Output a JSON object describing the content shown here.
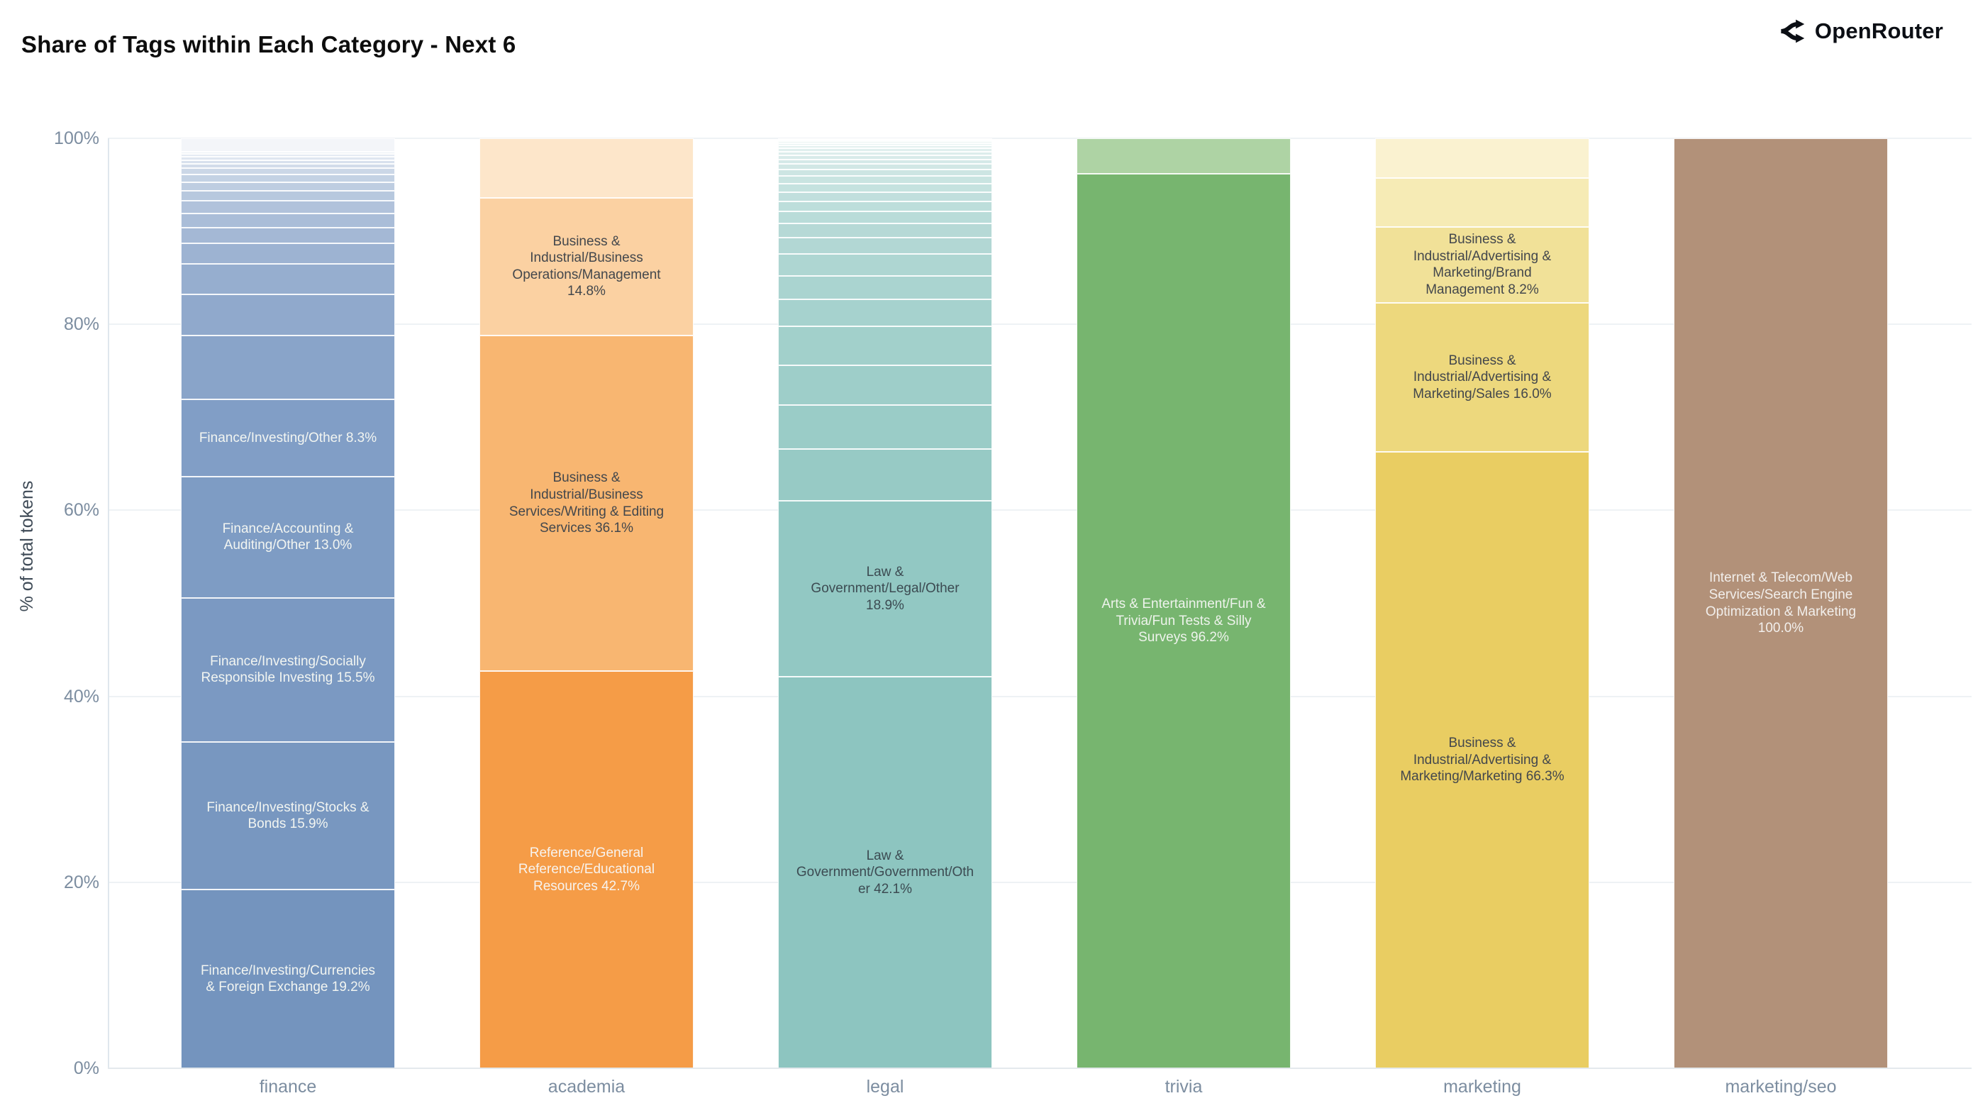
{
  "header": {
    "title": "Share of Tags within Each Category - Next 6",
    "logo_text": "OpenRouter"
  },
  "chart_data": {
    "type": "bar",
    "stacked": true,
    "orientation": "vertical",
    "title": "Share of Tags within Each Category - Next 6",
    "xlabel": "",
    "ylabel": "% of total tokens",
    "ylim": [
      0,
      100
    ],
    "yticks": [
      "0%",
      "20%",
      "40%",
      "60%",
      "80%",
      "100%"
    ],
    "grid": true,
    "legend": false,
    "categories": [
      "finance",
      "academia",
      "legal",
      "trivia",
      "marketing",
      "marketing/seo"
    ],
    "bars": [
      {
        "category": "finance",
        "segments": [
          {
            "label": "Finance/Investing/Currencies & Foreign Exchange 19.2%",
            "value": 19.2,
            "color": "#7494be",
            "text_color": "#f2f5f1"
          },
          {
            "label": "Finance/Investing/Stocks & Bonds 15.9%",
            "value": 15.9,
            "color": "#7897c0",
            "text_color": "#f2f5f1"
          },
          {
            "label": "Finance/Investing/Socially Responsible Investing 15.5%",
            "value": 15.5,
            "color": "#7b99c2",
            "text_color": "#f2f5f1"
          },
          {
            "label": "Finance/Accounting & Auditing/Other 13.0%",
            "value": 13.0,
            "color": "#7e9cc4",
            "text_color": "#f2f5f1"
          },
          {
            "label": "Finance/Investing/Other 8.3%",
            "value": 8.3,
            "color": "#819ec6",
            "text_color": "#f2f5f1"
          },
          {
            "label": "",
            "value": 6.9,
            "color": "#89a4c9"
          },
          {
            "label": "",
            "value": 4.4,
            "color": "#90a9cc"
          },
          {
            "label": "",
            "value": 3.3,
            "color": "#96aecf"
          },
          {
            "label": "",
            "value": 2.2,
            "color": "#9db3d2"
          },
          {
            "label": "",
            "value": 1.7,
            "color": "#a4b8d5"
          },
          {
            "label": "",
            "value": 1.5,
            "color": "#aabdd8"
          },
          {
            "label": "",
            "value": 1.4,
            "color": "#b1c2db"
          },
          {
            "label": "",
            "value": 1.05,
            "color": "#b7c8de"
          },
          {
            "label": "",
            "value": 0.9,
            "color": "#becde1"
          },
          {
            "label": "",
            "value": 0.85,
            "color": "#c4d2e4"
          },
          {
            "label": "",
            "value": 0.7,
            "color": "#cbd7e7"
          },
          {
            "label": "",
            "value": 0.45,
            "color": "#d2dcea"
          },
          {
            "label": "",
            "value": 0.4,
            "color": "#d8e1ed"
          },
          {
            "label": "",
            "value": 0.35,
            "color": "#dfe6f0"
          },
          {
            "label": "",
            "value": 0.3,
            "color": "#e5ebf3"
          },
          {
            "label": "",
            "value": 0.25,
            "color": "#ecf0f6"
          },
          {
            "label": "",
            "value": 1.45,
            "color": "#f3f5f9"
          }
        ]
      },
      {
        "category": "academia",
        "segments": [
          {
            "label": "Reference/General Reference/Educational Resources 42.7%",
            "value": 42.7,
            "color": "#f59c47",
            "text_color": "#f7f3ee"
          },
          {
            "label": "Business & Industrial/Business Services/Writing & Editing Services 36.1%",
            "value": 36.1,
            "color": "#f8b671",
            "text_color": "#43474c"
          },
          {
            "label": "Business & Industrial/Business Operations/Management 14.8%",
            "value": 14.8,
            "color": "#fbd1a2",
            "text_color": "#43474c"
          },
          {
            "label": "",
            "value": 6.4,
            "color": "#fde6ca"
          }
        ]
      },
      {
        "category": "legal",
        "segments": [
          {
            "label": "Law & Government/Government/Other 42.1%",
            "value": 42.1,
            "color": "#8dc5c0",
            "text_color": "#3c4b52"
          },
          {
            "label": "Law & Government/Legal/Other 18.9%",
            "value": 18.9,
            "color": "#92c8c3",
            "text_color": "#3c4b52"
          },
          {
            "label": "",
            "value": 5.6,
            "color": "#97cac5"
          },
          {
            "label": "",
            "value": 4.7,
            "color": "#9accc7"
          },
          {
            "label": "",
            "value": 4.3,
            "color": "#9ecec9"
          },
          {
            "label": "",
            "value": 4.2,
            "color": "#a2d0cb"
          },
          {
            "label": "",
            "value": 2.9,
            "color": "#a6d2ce"
          },
          {
            "label": "",
            "value": 2.5,
            "color": "#aad4d0"
          },
          {
            "label": "",
            "value": 2.4,
            "color": "#aed6d2"
          },
          {
            "label": "",
            "value": 1.75,
            "color": "#b2d7d4"
          },
          {
            "label": "",
            "value": 1.5,
            "color": "#b6d9d6"
          },
          {
            "label": "",
            "value": 1.3,
            "color": "#b9dcd9"
          },
          {
            "label": "",
            "value": 1.1,
            "color": "#bddedb"
          },
          {
            "label": "",
            "value": 1.0,
            "color": "#c1dfdd"
          },
          {
            "label": "",
            "value": 0.9,
            "color": "#c5e2df"
          },
          {
            "label": "",
            "value": 0.8,
            "color": "#c9e4e1"
          },
          {
            "label": "",
            "value": 0.7,
            "color": "#cde5e3"
          },
          {
            "label": "",
            "value": 0.6,
            "color": "#d1e7e5"
          },
          {
            "label": "",
            "value": 0.5,
            "color": "#d5e9e8"
          },
          {
            "label": "",
            "value": 0.45,
            "color": "#d8ebea"
          },
          {
            "label": "",
            "value": 0.4,
            "color": "#dcedec"
          },
          {
            "label": "",
            "value": 0.35,
            "color": "#e0efee"
          },
          {
            "label": "",
            "value": 0.3,
            "color": "#e4f1f0"
          },
          {
            "label": "",
            "value": 0.25,
            "color": "#e8f3f2"
          },
          {
            "label": "",
            "value": 0.2,
            "color": "#ecf5f4"
          },
          {
            "label": "",
            "value": 0.15,
            "color": "#f0f7f7"
          },
          {
            "label": "",
            "value": 0.1,
            "color": "#f4f9f9"
          },
          {
            "label": "",
            "value": 0.05,
            "color": "#f7fbfb"
          }
        ]
      },
      {
        "category": "trivia",
        "segments": [
          {
            "label": "Arts & Entertainment/Fun & Trivia/Fun Tests & Silly Surveys 96.2%",
            "value": 96.2,
            "color": "#77b56f",
            "text_color": "#eef3ec"
          },
          {
            "label": "",
            "value": 3.8,
            "color": "#aed3a4"
          }
        ]
      },
      {
        "category": "marketing",
        "segments": [
          {
            "label": "Business & Industrial/Advertising & Marketing/Marketing 66.3%",
            "value": 66.3,
            "color": "#e9cd62",
            "text_color": "#43474c"
          },
          {
            "label": "Business & Industrial/Advertising & Marketing/Sales 16.0%",
            "value": 16.0,
            "color": "#edd87d",
            "text_color": "#43474c"
          },
          {
            "label": "Business & Industrial/Advertising & Marketing/Brand Management 8.2%",
            "value": 8.2,
            "color": "#f1e198",
            "text_color": "#43474c"
          },
          {
            "label": "",
            "value": 5.2,
            "color": "#f6ebb5"
          },
          {
            "label": "",
            "value": 4.3,
            "color": "#faf2d0"
          }
        ]
      },
      {
        "category": "marketing/seo",
        "segments": [
          {
            "label": "Internet & Telecom/Web Services/Search Engine Optimization & Marketing 100.0%",
            "value": 100.0,
            "color": "#b29179",
            "text_color": "#f2efec"
          }
        ]
      }
    ]
  }
}
